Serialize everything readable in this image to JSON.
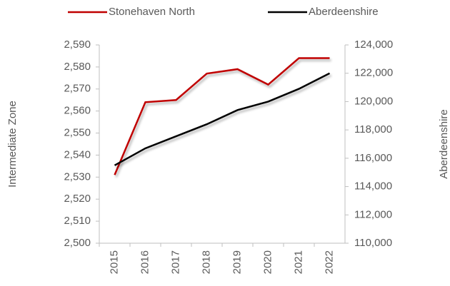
{
  "chart_data": {
    "type": "line",
    "categories": [
      "2015",
      "2016",
      "2017",
      "2018",
      "2019",
      "2020",
      "2021",
      "2022"
    ],
    "series": [
      {
        "name": "Stonehaven North",
        "color": "#c00000",
        "values": [
          2531,
          2564,
          2565,
          2577,
          2579,
          2572,
          2584,
          2584
        ]
      },
      {
        "name": "Aberdeenshire",
        "color": "#000000",
        "axis": "y2",
        "values": [
          115500,
          116700,
          117550,
          118400,
          119400,
          120000,
          120900,
          122000
        ]
      }
    ],
    "ylabel": "Intermediate Zone",
    "y2label": "Aberdeenshire",
    "ylim": [
      2500,
      2590
    ],
    "yticks": [
      {
        "value": 2500,
        "label": "2,500"
      },
      {
        "value": 2510,
        "label": "2,510"
      },
      {
        "value": 2520,
        "label": "2,520"
      },
      {
        "value": 2530,
        "label": "2,530"
      },
      {
        "value": 2540,
        "label": "2,540"
      },
      {
        "value": 2550,
        "label": "2,550"
      },
      {
        "value": 2560,
        "label": "2,560"
      },
      {
        "value": 2570,
        "label": "2,570"
      },
      {
        "value": 2580,
        "label": "2,580"
      },
      {
        "value": 2590,
        "label": "2,590"
      }
    ],
    "y2lim": [
      110000,
      124000
    ],
    "y2ticks": [
      {
        "value": 110000,
        "label": "110,000"
      },
      {
        "value": 112000,
        "label": "112,000"
      },
      {
        "value": 114000,
        "label": "114,000"
      },
      {
        "value": 116000,
        "label": "116,000"
      },
      {
        "value": 118000,
        "label": "118,000"
      },
      {
        "value": 120000,
        "label": "120,000"
      },
      {
        "value": 122000,
        "label": "122,000"
      },
      {
        "value": 124000,
        "label": "124,000"
      }
    ],
    "grid": false,
    "legend": "top"
  }
}
